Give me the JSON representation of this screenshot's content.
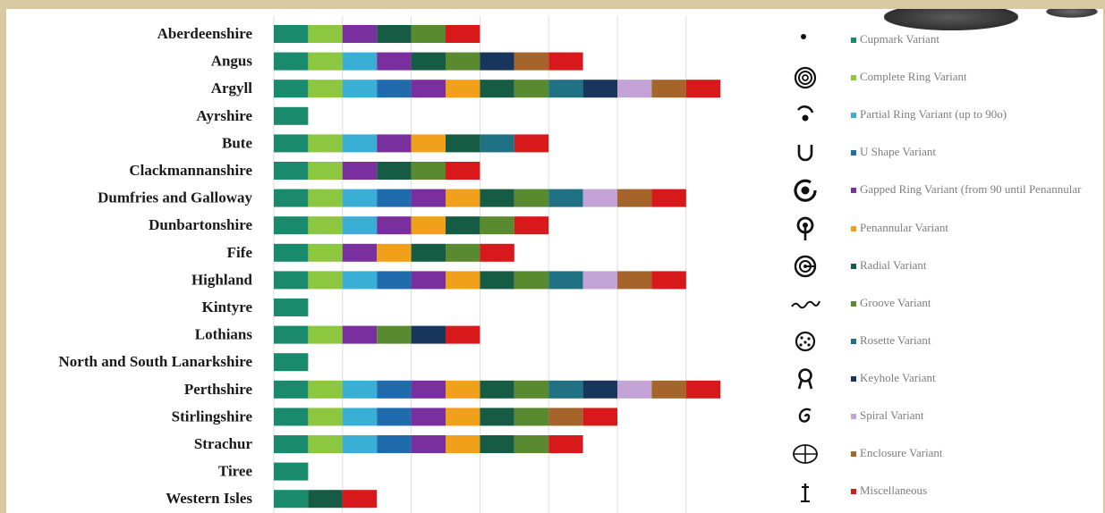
{
  "chart_data": {
    "type": "bar",
    "stacked": true,
    "orientation": "horizontal",
    "grid": true,
    "legend_position": "right",
    "categories": [
      "Aberdeenshire",
      "Angus",
      "Argyll",
      "Ayrshire",
      "Bute",
      "Clackmannanshire",
      "Dumfries and Galloway",
      "Dunbartonshire",
      "Fife",
      "Highland",
      "Kintyre",
      "Lothians",
      "North and South Lanarkshire",
      "Perthshire",
      "Stirlingshire",
      "Strachur",
      "Tiree",
      "Western Isles"
    ],
    "series": [
      {
        "name": "Cupmark Variant",
        "color": "#1a8a6c",
        "values": [
          1,
          1,
          1,
          1,
          1,
          1,
          1,
          1,
          1,
          1,
          1,
          1,
          1,
          1,
          1,
          1,
          1,
          1
        ]
      },
      {
        "name": "Complete Ring Variant",
        "color": "#8dc63f",
        "values": [
          1,
          1,
          1,
          0,
          1,
          1,
          1,
          1,
          1,
          1,
          0,
          1,
          0,
          1,
          1,
          1,
          0,
          0
        ]
      },
      {
        "name": "Partial Ring Variant (up to 90o)",
        "color": "#39afd6",
        "values": [
          0,
          1,
          1,
          0,
          1,
          0,
          1,
          1,
          0,
          1,
          0,
          0,
          0,
          1,
          1,
          1,
          0,
          0
        ]
      },
      {
        "name": "U Shape Variant",
        "color": "#1f6bad",
        "values": [
          0,
          0,
          1,
          0,
          0,
          0,
          1,
          0,
          0,
          1,
          0,
          0,
          0,
          1,
          1,
          1,
          0,
          0
        ]
      },
      {
        "name": "Gapped Ring Variant (from 90 until Penannular",
        "color": "#7a2f9e",
        "values": [
          1,
          1,
          1,
          0,
          1,
          1,
          1,
          1,
          1,
          1,
          0,
          1,
          0,
          1,
          1,
          1,
          0,
          0
        ]
      },
      {
        "name": "Penannular Variant",
        "color": "#f0a01b",
        "values": [
          0,
          0,
          1,
          0,
          1,
          0,
          1,
          1,
          1,
          1,
          0,
          0,
          0,
          1,
          1,
          1,
          0,
          0
        ]
      },
      {
        "name": "Radial Variant",
        "color": "#165c45",
        "values": [
          1,
          1,
          1,
          0,
          1,
          1,
          1,
          1,
          1,
          1,
          0,
          0,
          0,
          1,
          1,
          1,
          0,
          1
        ]
      },
      {
        "name": "Groove Variant",
        "color": "#5a8a30",
        "values": [
          1,
          1,
          1,
          0,
          0,
          1,
          1,
          1,
          1,
          1,
          0,
          1,
          0,
          1,
          1,
          1,
          0,
          0
        ]
      },
      {
        "name": "Rosette Variant",
        "color": "#1f7183",
        "values": [
          0,
          0,
          1,
          0,
          1,
          0,
          1,
          0,
          0,
          1,
          0,
          0,
          0,
          1,
          0,
          0,
          0,
          0
        ]
      },
      {
        "name": "Keyhole Variant",
        "color": "#18355c",
        "values": [
          0,
          1,
          1,
          0,
          0,
          0,
          0,
          0,
          0,
          0,
          0,
          1,
          0,
          1,
          0,
          0,
          0,
          0
        ]
      },
      {
        "name": "Spiral Variant",
        "color": "#c3a3d6",
        "values": [
          0,
          0,
          1,
          0,
          0,
          0,
          1,
          0,
          0,
          1,
          0,
          0,
          0,
          1,
          0,
          0,
          0,
          0
        ]
      },
      {
        "name": "Enclosure Variant",
        "color": "#a5652a",
        "values": [
          0,
          1,
          1,
          0,
          0,
          0,
          1,
          0,
          0,
          1,
          0,
          0,
          0,
          1,
          1,
          0,
          0,
          0
        ]
      },
      {
        "name": "Miscellaneous",
        "color": "#d7191c",
        "values": [
          1,
          1,
          1,
          0,
          1,
          1,
          1,
          1,
          1,
          1,
          0,
          1,
          0,
          1,
          1,
          1,
          0,
          1
        ]
      }
    ],
    "xlim": [
      0,
      15
    ],
    "x_gridlines": [
      0,
      2,
      4,
      6,
      8,
      10,
      12
    ]
  },
  "legend": {
    "items": [
      {
        "name": "Cupmark Variant",
        "symbol": "cupmark-icon"
      },
      {
        "name": "Complete Ring Variant",
        "symbol": "concentric-rings-icon"
      },
      {
        "name": "Partial Ring Variant (up to 90o)",
        "symbol": "partial-ring-icon"
      },
      {
        "name": "U Shape Variant",
        "symbol": "u-shape-icon"
      },
      {
        "name": "Gapped Ring Variant (from 90 until Penannular",
        "symbol": "gapped-ring-icon"
      },
      {
        "name": "Penannular Variant",
        "symbol": "penannular-icon"
      },
      {
        "name": "Radial Variant",
        "symbol": "radial-icon"
      },
      {
        "name": "Groove Variant",
        "symbol": "groove-icon"
      },
      {
        "name": "Rosette Variant",
        "symbol": "rosette-icon"
      },
      {
        "name": "Keyhole Variant",
        "symbol": "keyhole-icon"
      },
      {
        "name": "Spiral Variant",
        "symbol": "spiral-icon"
      },
      {
        "name": "Enclosure Variant",
        "symbol": "enclosure-icon"
      },
      {
        "name": "Miscellaneous",
        "symbol": "miscellaneous-icon"
      }
    ]
  }
}
